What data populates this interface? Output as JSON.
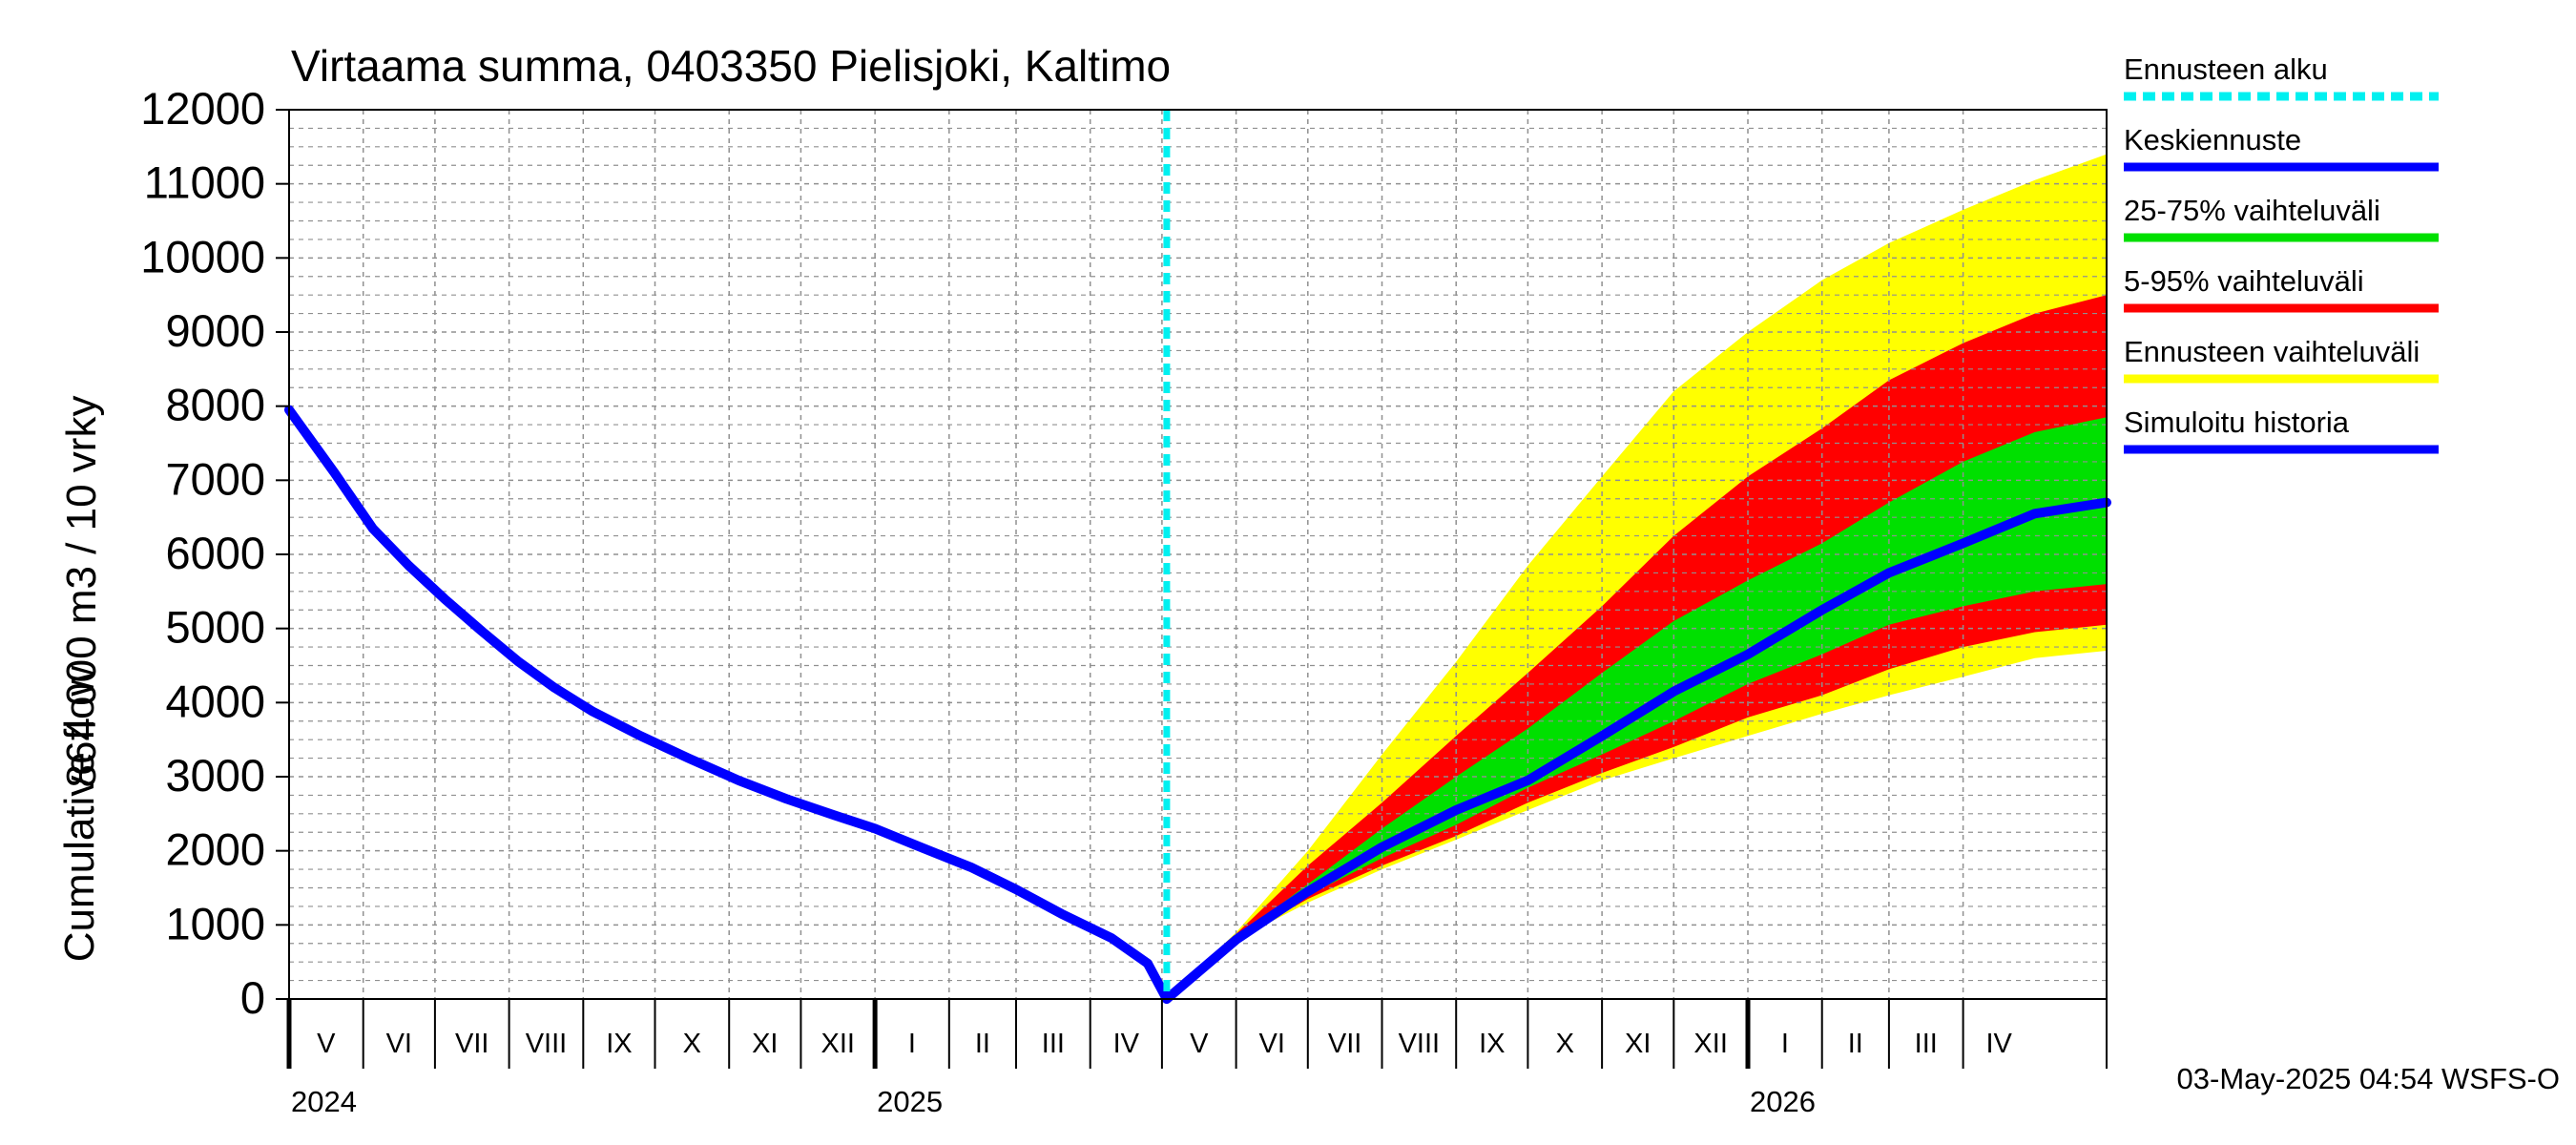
{
  "chart_data": {
    "type": "area",
    "title": "Virtaama summa, 0403350 Pielisjoki, Kaltimo",
    "ylabel_line1": "864 000 m3 / 10 vrky",
    "ylabel_line2": "Cumulative flow",
    "ylim": [
      0,
      12000
    ],
    "y_ticks": [
      0,
      1000,
      2000,
      3000,
      4000,
      5000,
      6000,
      7000,
      8000,
      9000,
      10000,
      11000,
      12000
    ],
    "x_range": [
      "2024-05-01",
      "2026-05-31"
    ],
    "forecast_start": "2025-05-03",
    "months": [
      {
        "label": "V",
        "start": "2024-05-01",
        "end": "2024-06-01"
      },
      {
        "label": "VI",
        "start": "2024-06-01",
        "end": "2024-07-01"
      },
      {
        "label": "VII",
        "start": "2024-07-01",
        "end": "2024-08-01"
      },
      {
        "label": "VIII",
        "start": "2024-08-01",
        "end": "2024-09-01"
      },
      {
        "label": "IX",
        "start": "2024-09-01",
        "end": "2024-10-01"
      },
      {
        "label": "X",
        "start": "2024-10-01",
        "end": "2024-11-01"
      },
      {
        "label": "XI",
        "start": "2024-11-01",
        "end": "2024-12-01"
      },
      {
        "label": "XII",
        "start": "2024-12-01",
        "end": "2025-01-01"
      },
      {
        "label": "I",
        "start": "2025-01-01",
        "end": "2025-02-01"
      },
      {
        "label": "II",
        "start": "2025-02-01",
        "end": "2025-03-01"
      },
      {
        "label": "III",
        "start": "2025-03-01",
        "end": "2025-04-01"
      },
      {
        "label": "IV",
        "start": "2025-04-01",
        "end": "2025-05-01"
      },
      {
        "label": "V",
        "start": "2025-05-01",
        "end": "2025-06-01"
      },
      {
        "label": "VI",
        "start": "2025-06-01",
        "end": "2025-07-01"
      },
      {
        "label": "VII",
        "start": "2025-07-01",
        "end": "2025-08-01"
      },
      {
        "label": "VIII",
        "start": "2025-08-01",
        "end": "2025-09-01"
      },
      {
        "label": "IX",
        "start": "2025-09-01",
        "end": "2025-10-01"
      },
      {
        "label": "X",
        "start": "2025-10-01",
        "end": "2025-11-01"
      },
      {
        "label": "XI",
        "start": "2025-11-01",
        "end": "2025-12-01"
      },
      {
        "label": "XII",
        "start": "2025-12-01",
        "end": "2026-01-01"
      },
      {
        "label": "I",
        "start": "2026-01-01",
        "end": "2026-02-01"
      },
      {
        "label": "II",
        "start": "2026-02-01",
        "end": "2026-03-01"
      },
      {
        "label": "III",
        "start": "2026-03-01",
        "end": "2026-04-01"
      },
      {
        "label": "IV",
        "start": "2026-04-01",
        "end": "2026-05-01"
      }
    ],
    "years": [
      {
        "label": "2024",
        "date": "2024-05-01"
      },
      {
        "label": "2025",
        "date": "2025-01-01"
      },
      {
        "label": "2026",
        "date": "2026-01-01"
      }
    ],
    "series": {
      "history": {
        "name": "Simuloitu historia",
        "points": [
          [
            "2024-05-01",
            7950
          ],
          [
            "2024-05-20",
            7100
          ],
          [
            "2024-06-05",
            6350
          ],
          [
            "2024-06-20",
            5850
          ],
          [
            "2024-07-05",
            5400
          ],
          [
            "2024-07-20",
            4980
          ],
          [
            "2024-08-05",
            4550
          ],
          [
            "2024-08-20",
            4200
          ],
          [
            "2024-09-05",
            3880
          ],
          [
            "2024-09-25",
            3550
          ],
          [
            "2024-10-15",
            3250
          ],
          [
            "2024-11-05",
            2950
          ],
          [
            "2024-11-25",
            2700
          ],
          [
            "2024-12-15",
            2480
          ],
          [
            "2025-01-01",
            2300
          ],
          [
            "2025-01-20",
            2050
          ],
          [
            "2025-02-10",
            1780
          ],
          [
            "2025-03-01",
            1480
          ],
          [
            "2025-03-20",
            1150
          ],
          [
            "2025-04-10",
            820
          ],
          [
            "2025-04-25",
            480
          ],
          [
            "2025-05-03",
            0
          ]
        ]
      },
      "median": {
        "name": "Keskiennuste",
        "points": [
          [
            "2025-05-03",
            0
          ],
          [
            "2025-06-01",
            800
          ],
          [
            "2025-07-01",
            1450
          ],
          [
            "2025-08-01",
            2050
          ],
          [
            "2025-09-01",
            2550
          ],
          [
            "2025-10-01",
            2950
          ],
          [
            "2025-11-01",
            3550
          ],
          [
            "2025-12-01",
            4150
          ],
          [
            "2026-01-01",
            4650
          ],
          [
            "2026-02-01",
            5250
          ],
          [
            "2026-03-01",
            5750
          ],
          [
            "2026-04-01",
            6150
          ],
          [
            "2026-05-01",
            6550
          ],
          [
            "2026-05-31",
            6700
          ]
        ]
      },
      "band_outer": {
        "name": "Ennusteen vaihteluväli",
        "lower": [
          [
            "2025-05-03",
            0
          ],
          [
            "2025-06-01",
            800
          ],
          [
            "2025-07-01",
            1300
          ],
          [
            "2025-08-01",
            1750
          ],
          [
            "2025-09-01",
            2150
          ],
          [
            "2025-10-01",
            2550
          ],
          [
            "2025-11-01",
            2950
          ],
          [
            "2025-12-01",
            3250
          ],
          [
            "2026-01-01",
            3550
          ],
          [
            "2026-02-01",
            3850
          ],
          [
            "2026-03-01",
            4100
          ],
          [
            "2026-04-01",
            4350
          ],
          [
            "2026-05-01",
            4600
          ],
          [
            "2026-05-31",
            4700
          ]
        ],
        "upper": [
          [
            "2025-05-03",
            0
          ],
          [
            "2025-06-01",
            900
          ],
          [
            "2025-07-01",
            2000
          ],
          [
            "2025-08-01",
            3300
          ],
          [
            "2025-09-01",
            4550
          ],
          [
            "2025-10-01",
            5850
          ],
          [
            "2025-11-01",
            7050
          ],
          [
            "2025-12-01",
            8200
          ],
          [
            "2026-01-01",
            9000
          ],
          [
            "2026-02-01",
            9700
          ],
          [
            "2026-03-01",
            10200
          ],
          [
            "2026-04-01",
            10650
          ],
          [
            "2026-05-01",
            11050
          ],
          [
            "2026-05-31",
            11400
          ]
        ]
      },
      "band_5_95": {
        "name": "5-95% vaihteluväli",
        "lower": [
          [
            "2025-05-03",
            0
          ],
          [
            "2025-06-01",
            800
          ],
          [
            "2025-07-01",
            1350
          ],
          [
            "2025-08-01",
            1800
          ],
          [
            "2025-09-01",
            2200
          ],
          [
            "2025-10-01",
            2650
          ],
          [
            "2025-11-01",
            3050
          ],
          [
            "2025-12-01",
            3400
          ],
          [
            "2026-01-01",
            3800
          ],
          [
            "2026-02-01",
            4100
          ],
          [
            "2026-03-01",
            4450
          ],
          [
            "2026-04-01",
            4750
          ],
          [
            "2026-05-01",
            4950
          ],
          [
            "2026-05-31",
            5050
          ]
        ],
        "upper": [
          [
            "2025-05-03",
            0
          ],
          [
            "2025-06-01",
            880
          ],
          [
            "2025-07-01",
            1800
          ],
          [
            "2025-08-01",
            2650
          ],
          [
            "2025-09-01",
            3550
          ],
          [
            "2025-10-01",
            4400
          ],
          [
            "2025-11-01",
            5300
          ],
          [
            "2025-12-01",
            6250
          ],
          [
            "2026-01-01",
            7050
          ],
          [
            "2026-02-01",
            7700
          ],
          [
            "2026-03-01",
            8350
          ],
          [
            "2026-04-01",
            8850
          ],
          [
            "2026-05-01",
            9250
          ],
          [
            "2026-05-31",
            9500
          ]
        ]
      },
      "band_25_75": {
        "name": "25-75% vaihteluväli",
        "lower": [
          [
            "2025-05-03",
            0
          ],
          [
            "2025-06-01",
            800
          ],
          [
            "2025-07-01",
            1400
          ],
          [
            "2025-08-01",
            1900
          ],
          [
            "2025-09-01",
            2350
          ],
          [
            "2025-10-01",
            2850
          ],
          [
            "2025-11-01",
            3300
          ],
          [
            "2025-12-01",
            3750
          ],
          [
            "2026-01-01",
            4250
          ],
          [
            "2026-02-01",
            4650
          ],
          [
            "2026-03-01",
            5050
          ],
          [
            "2026-04-01",
            5300
          ],
          [
            "2026-05-01",
            5500
          ],
          [
            "2026-05-31",
            5600
          ]
        ],
        "upper": [
          [
            "2025-05-03",
            0
          ],
          [
            "2025-06-01",
            830
          ],
          [
            "2025-07-01",
            1550
          ],
          [
            "2025-08-01",
            2300
          ],
          [
            "2025-09-01",
            3000
          ],
          [
            "2025-10-01",
            3650
          ],
          [
            "2025-11-01",
            4400
          ],
          [
            "2025-12-01",
            5100
          ],
          [
            "2026-01-01",
            5650
          ],
          [
            "2026-02-01",
            6150
          ],
          [
            "2026-03-01",
            6700
          ],
          [
            "2026-04-01",
            7250
          ],
          [
            "2026-05-01",
            7650
          ],
          [
            "2026-05-31",
            7850
          ]
        ]
      }
    },
    "legend": [
      {
        "label": "Ennusteen alku",
        "color": "#00f0f0",
        "style": "dashed"
      },
      {
        "label": "Keskiennuste",
        "color": "#0000ff",
        "style": "solid"
      },
      {
        "label": "25-75% vaihteluväli",
        "color": "#00e000",
        "style": "solid"
      },
      {
        "label": "5-95% vaihteluväli",
        "color": "#ff0000",
        "style": "solid"
      },
      {
        "label": "Ennusteen vaihteluväli",
        "color": "#ffff00",
        "style": "solid"
      },
      {
        "label": "Simuloitu historia",
        "color": "#0000ff",
        "style": "solid"
      }
    ],
    "footer": "03-May-2025 04:54 WSFS-O"
  },
  "colors": {
    "history": "#0000ff",
    "median": "#0000ff",
    "band_outer": "#ffff00",
    "band_5_95": "#ff0000",
    "band_25_75": "#00e000",
    "forecast_start": "#00f0f0",
    "grid": "#909090"
  }
}
